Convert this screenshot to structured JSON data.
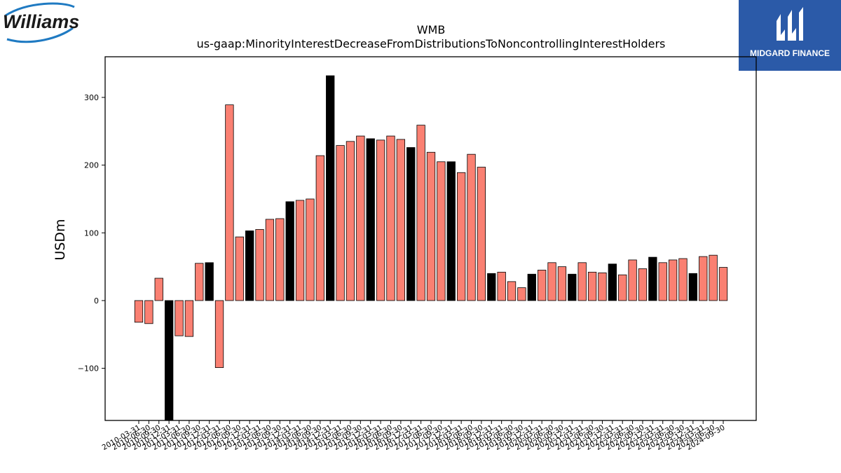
{
  "branding": {
    "left_logo_text": "Williams",
    "right_logo_text": "MIDGARD FINANCE",
    "right_logo_color": "#2b5aa8"
  },
  "chart_data": {
    "type": "bar",
    "title": "WMB",
    "subtitle": "us-gaap:MinorityInterestDecreaseFromDistributionsToNoncontrollingInterestHolders",
    "ylabel": "USDm",
    "xlabel": "",
    "ylim": [
      -177,
      360
    ],
    "yticks": [
      -100,
      0,
      100,
      200,
      300
    ],
    "grid": false,
    "colors": {
      "regular": "#fa8072",
      "q4": "#000000",
      "edge": "#000000"
    },
    "categories": [
      "2010-03-31",
      "2010-06-30",
      "2010-09-30",
      "2010-12-31",
      "2011-03-31",
      "2011-06-30",
      "2011-09-30",
      "2011-12-31",
      "2012-03-31",
      "2012-06-30",
      "2012-09-30",
      "2012-12-31",
      "2013-03-31",
      "2013-06-30",
      "2013-09-30",
      "2013-12-31",
      "2014-03-31",
      "2014-06-30",
      "2014-09-30",
      "2014-12-31",
      "2015-03-31",
      "2015-06-30",
      "2015-09-30",
      "2015-12-31",
      "2016-03-31",
      "2016-06-30",
      "2016-09-30",
      "2016-12-31",
      "2017-03-31",
      "2017-06-30",
      "2017-09-30",
      "2017-12-31",
      "2018-03-31",
      "2018-06-30",
      "2018-09-30",
      "2018-12-31",
      "2019-03-31",
      "2019-06-30",
      "2019-09-30",
      "2019-12-31",
      "2020-03-31",
      "2020-06-30",
      "2020-09-30",
      "2020-12-31",
      "2021-03-31",
      "2021-06-30",
      "2021-09-30",
      "2021-12-31",
      "2022-03-31",
      "2022-06-30",
      "2022-09-30",
      "2022-12-31",
      "2023-03-31",
      "2023-06-30",
      "2023-09-30",
      "2023-12-31",
      "2024-03-31",
      "2024-06-30",
      "2024-09-30"
    ],
    "values": [
      -32,
      -34,
      33,
      -177,
      -52,
      -53,
      55,
      56,
      -99,
      289,
      94,
      103,
      105,
      120,
      121,
      146,
      148,
      150,
      214,
      332,
      229,
      235,
      243,
      239,
      237,
      243,
      238,
      226,
      259,
      219,
      205,
      205,
      189,
      216,
      197,
      40,
      42,
      28,
      19,
      39,
      45,
      56,
      50,
      39,
      56,
      42,
      41,
      54,
      38,
      60,
      47,
      64,
      56,
      60,
      62,
      40,
      65,
      67,
      49
    ],
    "highlight": [
      false,
      false,
      false,
      true,
      false,
      false,
      false,
      true,
      false,
      false,
      false,
      true,
      false,
      false,
      false,
      true,
      false,
      false,
      false,
      true,
      false,
      false,
      false,
      true,
      false,
      false,
      false,
      true,
      false,
      false,
      false,
      true,
      false,
      false,
      false,
      true,
      false,
      false,
      false,
      true,
      false,
      false,
      false,
      true,
      false,
      false,
      false,
      true,
      false,
      false,
      false,
      true,
      false,
      false,
      false,
      true,
      false,
      false,
      false
    ]
  }
}
